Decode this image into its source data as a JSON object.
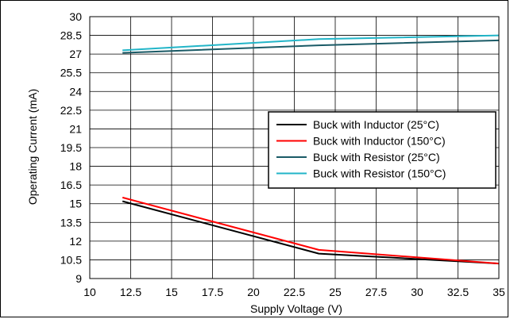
{
  "chart_data": {
    "type": "line",
    "xlabel": "Supply Voltage (V)",
    "ylabel": "Operating Current (mA)",
    "xlim": [
      10,
      35
    ],
    "ylim": [
      9,
      30
    ],
    "xticks": [
      10,
      12.5,
      15,
      17.5,
      20,
      22.5,
      25,
      27.5,
      30,
      32.5,
      35
    ],
    "xtick_labels": [
      "10",
      "12.5",
      "15",
      "17.5",
      "20",
      "22.5",
      "25",
      "27.5",
      "30",
      "32.5",
      "35"
    ],
    "yticks": [
      9,
      10.5,
      12,
      13.5,
      15,
      16.5,
      18,
      19.5,
      21,
      22.5,
      24,
      25.5,
      27,
      28.5,
      30
    ],
    "ytick_labels": [
      "9",
      "10.5",
      "12",
      "13.5",
      "15",
      "16.5",
      "18",
      "19.5",
      "21",
      "22.5",
      "24",
      "25.5",
      "27",
      "28.5",
      "30"
    ],
    "grid": true,
    "legend_position": "center-right",
    "series": [
      {
        "name": "Buck with Inductor (25°C)",
        "color": "#000000",
        "x": [
          12,
          24,
          35
        ],
        "y": [
          15.2,
          11.0,
          10.2
        ]
      },
      {
        "name": "Buck with Inductor (150°C)",
        "color": "#ff0000",
        "x": [
          12,
          24,
          35
        ],
        "y": [
          15.5,
          11.3,
          10.2
        ]
      },
      {
        "name": "Buck with Resistor (25°C)",
        "color": "#1a5a66",
        "x": [
          12,
          24,
          35
        ],
        "y": [
          27.1,
          27.7,
          28.1
        ]
      },
      {
        "name": "Buck with Resistor (150°C)",
        "color": "#22b5c8",
        "x": [
          12,
          24,
          35
        ],
        "y": [
          27.3,
          28.2,
          28.5
        ]
      }
    ]
  }
}
